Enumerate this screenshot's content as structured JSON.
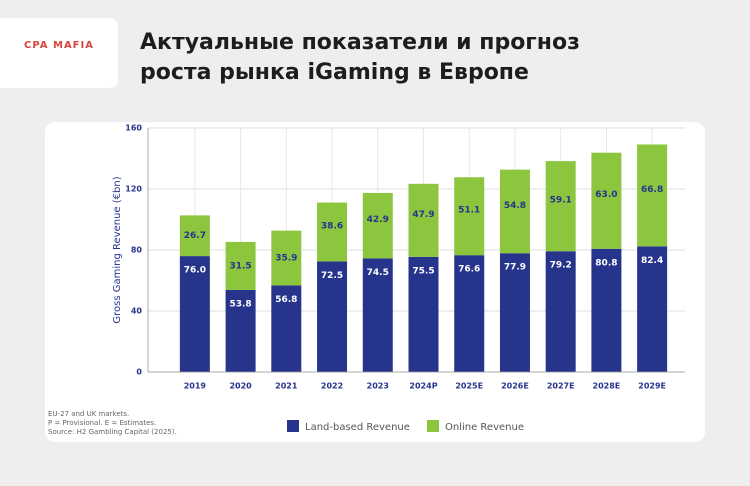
{
  "header": {
    "logo": "CPA MAFIA",
    "title_lines": [
      "Актуальные показатели и прогноз",
      "роста рынка iGaming в Европе"
    ]
  },
  "chart_data": {
    "type": "bar",
    "stacked": true,
    "ylabel": "Gross Gaming Revenue (€bn)",
    "categories": [
      "2019",
      "2020",
      "2021",
      "2022",
      "2023",
      "2024P",
      "2025E",
      "2026E",
      "2027E",
      "2028E",
      "2029E"
    ],
    "series": [
      {
        "name": "Land-based Revenue",
        "color": "#27348b",
        "label_color": "#ffffff",
        "values": [
          76.0,
          53.8,
          56.8,
          72.5,
          74.5,
          75.5,
          76.6,
          77.9,
          79.2,
          80.8,
          82.4
        ],
        "value_labels": [
          "76.0",
          "53.8",
          "56.8",
          "72.5",
          "74.5",
          "75.5",
          "76.6",
          "77.9",
          "79.2",
          "80.8",
          "82.4"
        ]
      },
      {
        "name": "Online Revenue",
        "color": "#8cc63f",
        "label_color": "#27348b",
        "values": [
          26.7,
          31.5,
          35.9,
          38.6,
          42.9,
          47.9,
          51.1,
          54.8,
          59.1,
          63.0,
          66.8
        ],
        "value_labels": [
          "26.7",
          "31.5",
          "35.9",
          "38.6",
          "42.9",
          "47.9",
          "51.1",
          "54.8",
          "59.1",
          "63.0",
          "66.8"
        ]
      }
    ],
    "ylim": [
      0,
      160
    ],
    "yticks": [
      0,
      40,
      80,
      120,
      160
    ],
    "grid": true,
    "legend": "bottom",
    "notes": [
      "EU-27 and UK markets.",
      "P = Provisional. E = Estimates.",
      "Source: H2 Gambling Capital (2025)."
    ]
  }
}
